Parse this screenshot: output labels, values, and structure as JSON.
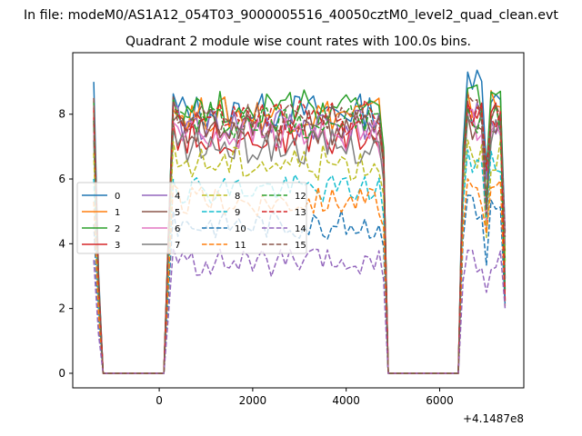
{
  "figure": {
    "suptitle": "In file: modeM0/AS1A12_054T03_9000005516_40050cztM0_level2_quad_clean.evt",
    "title": "Quadrant 2 module wise count rates with 100.0s bins.",
    "offset_text": "+4.1487e8"
  },
  "chart_data": {
    "type": "line",
    "title": "Quadrant 2 module wise count rates with 100.0s bins.",
    "xlabel": "",
    "ylabel": "",
    "x_offset": 414870000,
    "xlim": [
      -1850,
      7800
    ],
    "ylim": [
      -0.45,
      9.9
    ],
    "xticks": [
      0,
      2000,
      4000,
      6000
    ],
    "yticks": [
      0,
      2,
      4,
      6,
      8
    ],
    "grid": false,
    "legend": {
      "placement": "center-left",
      "columns": 4
    },
    "bin_seconds": 100,
    "time": {
      "x_start": -1400,
      "x_step": 100,
      "segments": [
        {
          "from": -1400,
          "to": -1200,
          "kind": "ramp_down"
        },
        {
          "from": -1100,
          "to": 100,
          "kind": "zero"
        },
        {
          "from": 200,
          "to": 300,
          "kind": "ramp_up"
        },
        {
          "from": 300,
          "to": 4800,
          "kind": "plateau"
        },
        {
          "from": 4900,
          "to": 6400,
          "kind": "zero"
        },
        {
          "from": 6500,
          "to": 7400,
          "kind": "second_plateau"
        }
      ]
    },
    "series": [
      {
        "name": "0",
        "style": "solid",
        "color": "#1f77b4",
        "level": 8.1,
        "late": 9.3,
        "start": 9.0
      },
      {
        "name": "1",
        "style": "solid",
        "color": "#ff7f0e",
        "level": 8.0,
        "late": 8.7,
        "start": 8.1
      },
      {
        "name": "2",
        "style": "solid",
        "color": "#2ca02c",
        "level": 8.2,
        "late": 8.8,
        "start": 8.4
      },
      {
        "name": "3",
        "style": "solid",
        "color": "#d62728",
        "level": 7.3,
        "late": 8.3,
        "start": 7.9
      },
      {
        "name": "4",
        "style": "solid",
        "color": "#9467bd",
        "level": 7.7,
        "late": 8.2,
        "start": 7.8
      },
      {
        "name": "5",
        "style": "solid",
        "color": "#8c564b",
        "level": 7.6,
        "late": 8.0,
        "start": 7.7
      },
      {
        "name": "6",
        "style": "solid",
        "color": "#e377c2",
        "level": 7.4,
        "late": 8.1,
        "start": 7.5
      },
      {
        "name": "7",
        "style": "solid",
        "color": "#7f7f7f",
        "level": 7.0,
        "late": 7.9,
        "start": 7.2
      },
      {
        "name": "8",
        "style": "dashed",
        "color": "#bcbd22",
        "level": 6.5,
        "late": 7.2,
        "start": 6.8
      },
      {
        "name": "9",
        "style": "dashed",
        "color": "#17becf",
        "level": 5.7,
        "late": 6.9,
        "start": 6.0
      },
      {
        "name": "10",
        "style": "dashed",
        "color": "#1f77b4",
        "level": 4.6,
        "late": 5.5,
        "start": 4.6
      },
      {
        "name": "11",
        "style": "dashed",
        "color": "#ff7f0e",
        "level": 5.3,
        "late": 6.0,
        "start": 5.3
      },
      {
        "name": "12",
        "style": "dashed",
        "color": "#2ca02c",
        "level": 7.8,
        "late": 8.2,
        "start": 7.8
      },
      {
        "name": "13",
        "style": "dashed",
        "color": "#d62728",
        "level": 7.9,
        "late": 8.4,
        "start": 8.2
      },
      {
        "name": "14",
        "style": "dashed",
        "color": "#9467bd",
        "level": 3.4,
        "late": 3.8,
        "start": 3.5
      },
      {
        "name": "15",
        "style": "dashed",
        "color": "#8c564b",
        "level": 7.9,
        "late": 8.6,
        "start": 8.5
      }
    ]
  }
}
